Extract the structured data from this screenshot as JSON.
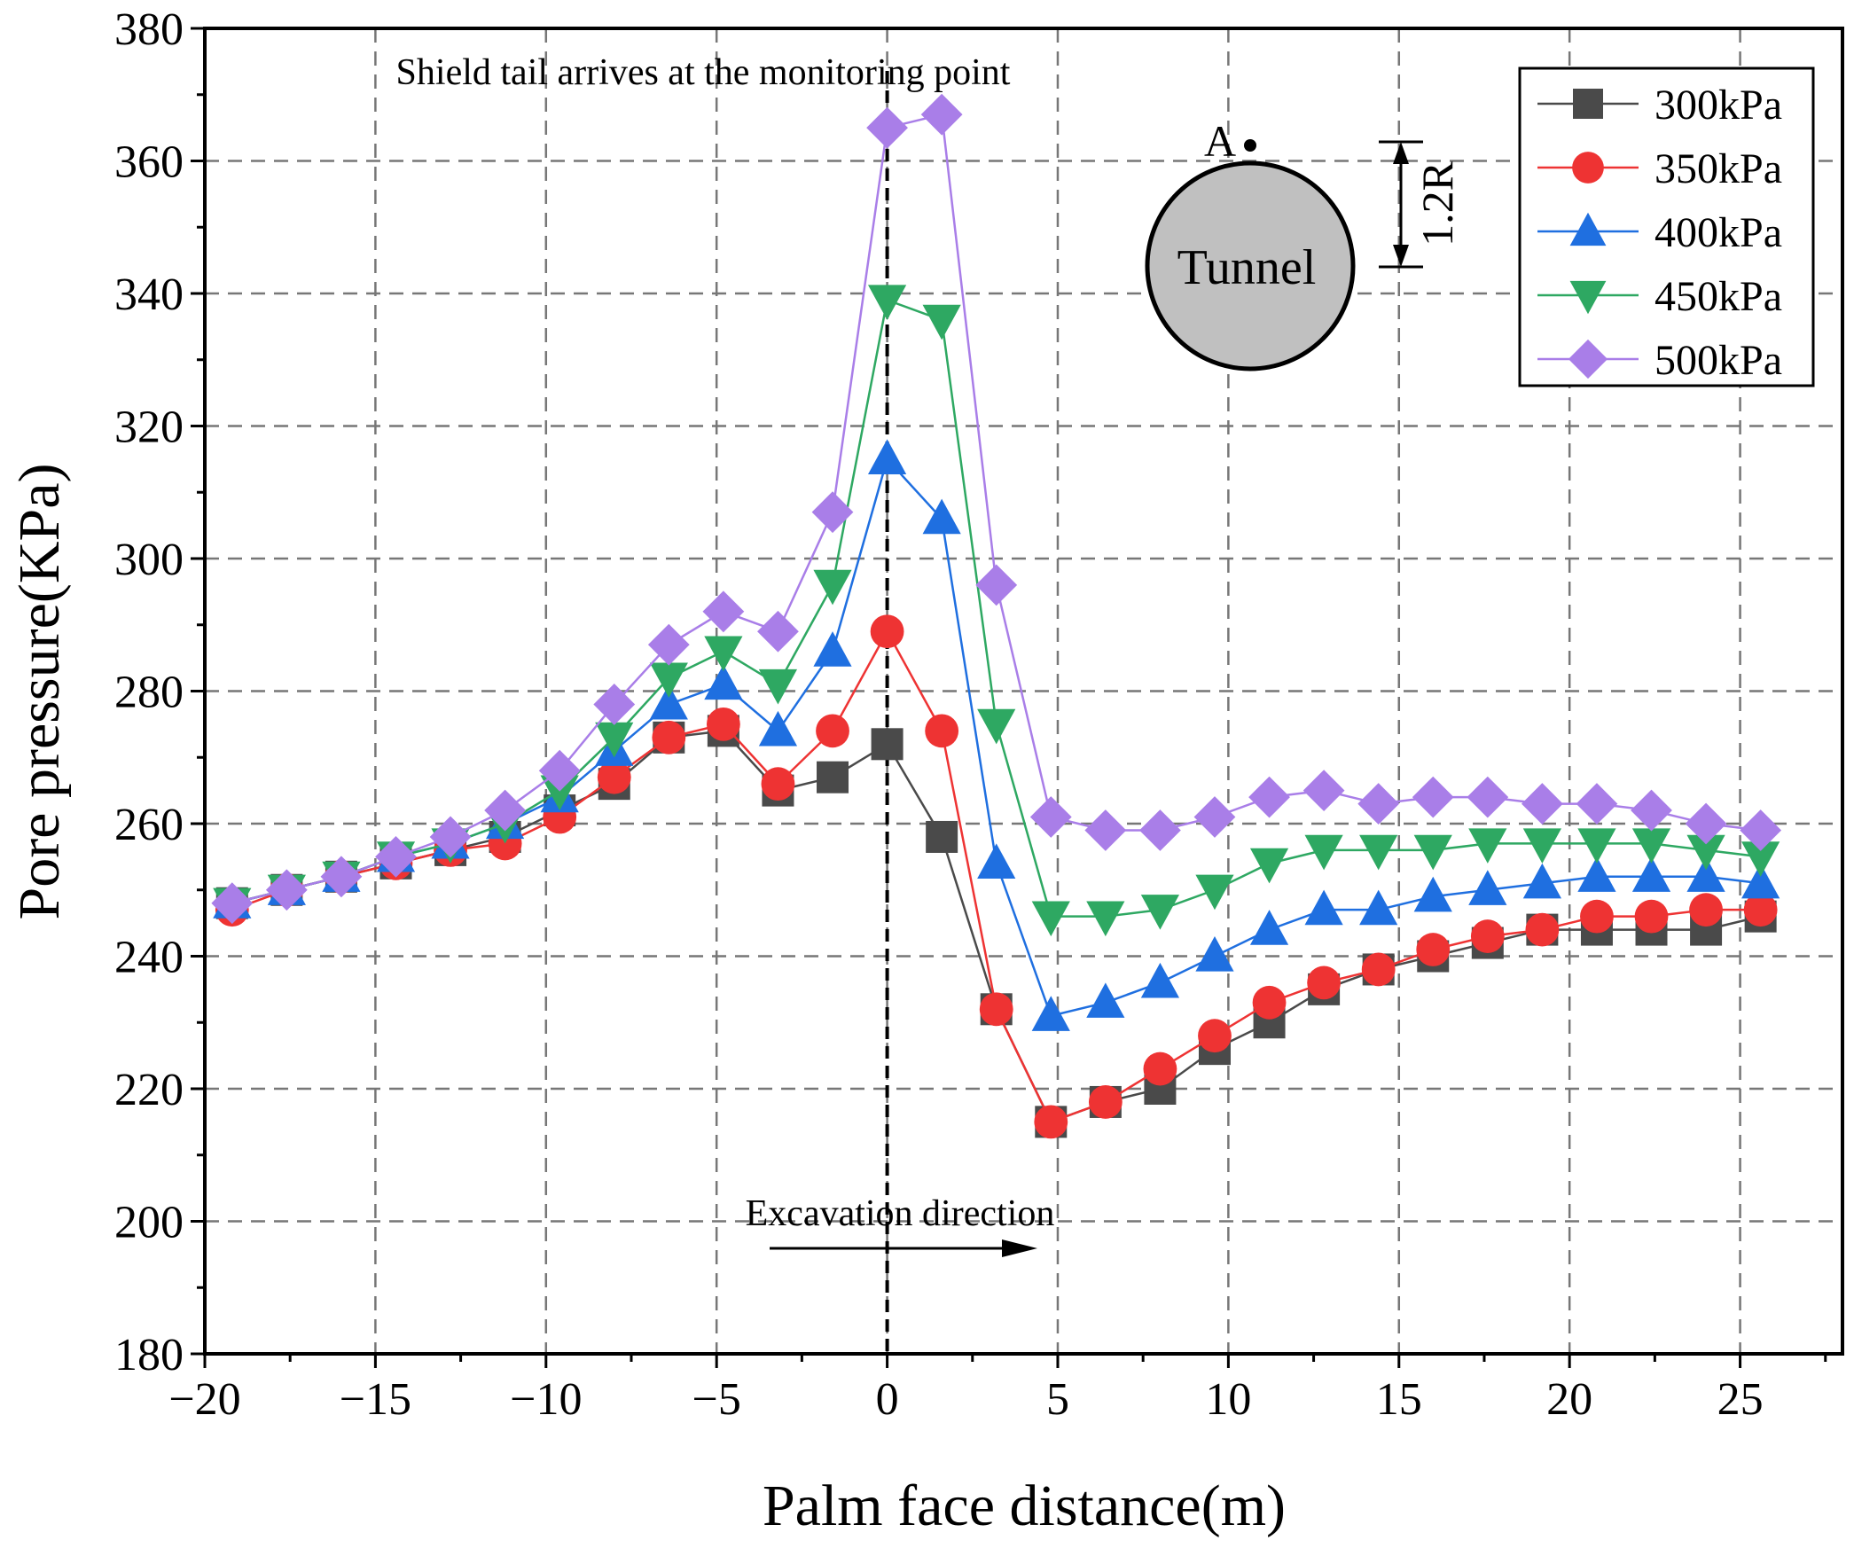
{
  "chart_data": {
    "type": "line",
    "title": "",
    "xlabel": "Palm face distance(m)",
    "ylabel": "Pore pressure(KPa)",
    "xlim": [
      -20,
      28
    ],
    "ylim": [
      180,
      380
    ],
    "xticks": [
      -20,
      -15,
      -10,
      -5,
      0,
      5,
      10,
      15,
      20,
      25
    ],
    "yticks": [
      180,
      200,
      220,
      240,
      260,
      280,
      300,
      320,
      340,
      360,
      380
    ],
    "xtick_labels": [
      "−20",
      "−15",
      "−10",
      "−5",
      "0",
      "5",
      "10",
      "15",
      "20",
      "25"
    ],
    "ytick_labels": [
      "180",
      "200",
      "220",
      "240",
      "260",
      "280",
      "300",
      "320",
      "340",
      "360",
      "380"
    ],
    "grid": true,
    "legend_position": "top-right",
    "x": [
      -19.2,
      -17.6,
      -16.0,
      -14.4,
      -12.8,
      -11.2,
      -9.6,
      -8.0,
      -6.4,
      -4.8,
      -3.2,
      -1.6,
      0.0,
      1.6,
      3.2,
      4.8,
      6.4,
      8.0,
      9.6,
      11.2,
      12.8,
      14.4,
      16.0,
      17.6,
      19.2,
      20.8,
      22.4,
      24.0,
      25.6
    ],
    "series": [
      {
        "name": "300kPa",
        "color": "#4a4a4a",
        "marker": "square",
        "values": [
          248,
          250,
          252,
          254,
          256,
          258,
          262,
          266,
          273,
          274,
          265,
          267,
          272,
          258,
          232,
          215,
          218,
          220,
          226,
          230,
          235,
          238,
          240,
          242,
          244,
          244,
          244,
          244,
          246
        ]
      },
      {
        "name": "350kPa",
        "color": "#ee3333",
        "marker": "circle",
        "values": [
          247,
          250,
          252,
          254,
          256,
          257,
          261,
          267,
          273,
          275,
          266,
          274,
          289,
          274,
          232,
          215,
          218,
          223,
          228,
          233,
          236,
          238,
          241,
          243,
          244,
          246,
          246,
          247,
          247
        ]
      },
      {
        "name": "400kPa",
        "color": "#1f6fe0",
        "marker": "triangle-up",
        "values": [
          248,
          250,
          252,
          255,
          257,
          260,
          264,
          271,
          278,
          281,
          274,
          286,
          315,
          306,
          254,
          231,
          233,
          236,
          240,
          244,
          247,
          247,
          249,
          250,
          251,
          252,
          252,
          252,
          251
        ]
      },
      {
        "name": "450kPa",
        "color": "#2ea862",
        "marker": "triangle-down",
        "values": [
          248,
          250,
          252,
          255,
          257,
          260,
          265,
          273,
          282,
          286,
          281,
          296,
          339,
          336,
          275,
          246,
          246,
          247,
          250,
          254,
          256,
          256,
          256,
          257,
          257,
          257,
          257,
          256,
          255
        ]
      },
      {
        "name": "500kPa",
        "color": "#a97ee8",
        "marker": "diamond",
        "values": [
          248,
          250,
          252,
          255,
          258,
          262,
          268,
          278,
          287,
          292,
          289,
          307,
          365,
          367,
          296,
          261,
          259,
          259,
          261,
          264,
          265,
          263,
          264,
          264,
          263,
          263,
          262,
          260,
          259
        ]
      }
    ],
    "annotations": {
      "shield_text": "Shield tail arrives at the monitoring point",
      "shield_x": 0,
      "excavation_text": "Excavation direction",
      "tunnel_text": "Tunnel",
      "point_label": "A",
      "dimension_label": "1.2R"
    }
  }
}
